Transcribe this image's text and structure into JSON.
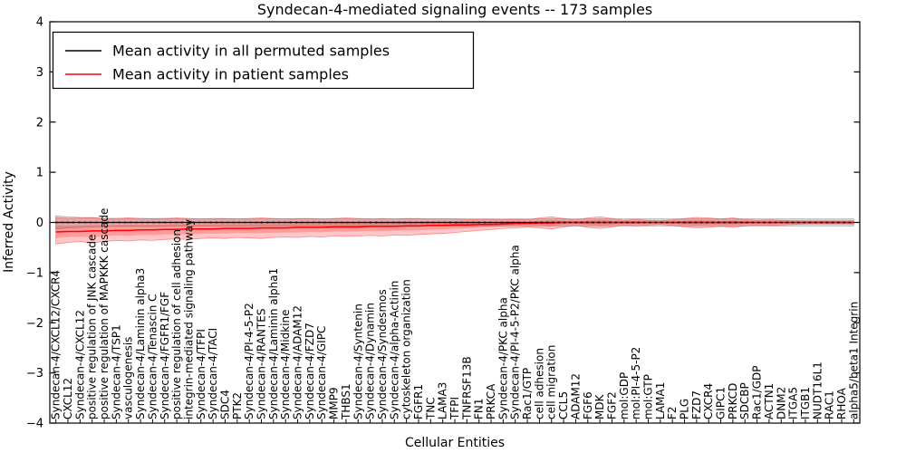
{
  "chart_data": {
    "type": "line",
    "title": "Syndecan-4-mediated signaling events -- 173 samples",
    "xlabel": "Cellular Entities",
    "ylabel": "Inferred Activity",
    "ylim": [
      -4,
      4
    ],
    "yticks": [
      -4,
      -3,
      -2,
      -1,
      0,
      1,
      2,
      3,
      4
    ],
    "grid": false,
    "legend_position": "upper-left",
    "legend": [
      {
        "label": "Mean activity in all permuted samples",
        "color": "#000000"
      },
      {
        "label": "Mean activity in patient samples",
        "color": "#ff0000"
      }
    ],
    "categories": [
      "Syndecan-4/CXCL12/CXCR4",
      "CXCL12",
      "Syndecan-4/CXCL12",
      "positive regulation of JNK cascade",
      "positive regulation of MAPKKK cascade",
      "Syndecan-4/TSP1",
      "vasculogenesis",
      "Syndecan-4/Laminin alpha3",
      "Syndecan-4/Tenascin C",
      "Syndecan-4/FGFR1/FGF",
      "positive regulation of cell adhesion",
      "integrin-mediated signaling pathway",
      "Syndecan-4/TFPI",
      "Syndecan-4/TACI",
      "SDC4",
      "PTK2",
      "Syndecan-4/PI-4-5-P2",
      "Syndecan-4/RANTES",
      "Syndecan-4/Laminin alpha1",
      "Syndecan-4/Midkine",
      "Syndecan-4/ADAM12",
      "Syndecan-4/FZD7",
      "Syndecan-4/GIPC",
      "MMP9",
      "THBS1",
      "Syndecan-4/Syntenin",
      "Syndecan-4/Dynamin",
      "Syndecan-4/Syndesmos",
      "Syndecan-4/alpha-Actinin",
      "cytoskeleton organization",
      "FGFR1",
      "TNC",
      "LAMA3",
      "TFPI",
      "TNFRSF13B",
      "FN1",
      "PRKCA",
      "Syndecan-4/PKC alpha",
      "Syndecan-4/PI-4-5-P2/PKC alpha",
      "Rac1/GTP",
      "cell adhesion",
      "cell migration",
      "CCL5",
      "ADAM12",
      "FGF6",
      "MDK",
      "FGF2",
      "mol:GDP",
      "mol:PI-4-5-P2",
      "mol:GTP",
      "LAMA1",
      "F2",
      "PLG",
      "FZD7",
      "CXCR4",
      "GIPC1",
      "PRKCD",
      "SDCBP",
      "Rac1/GDP",
      "ACTN1",
      "DNM2",
      "ITGA5",
      "ITGB1",
      "NUDT16L1",
      "RAC1",
      "RHOA",
      "alpha5/beta1 Integrin"
    ],
    "series": [
      {
        "name": "Mean activity in all permuted samples",
        "color": "#000000",
        "style": "solid-with-dotted-overlay",
        "values": [
          0,
          0,
          0,
          0,
          0,
          0,
          0,
          0,
          0,
          0,
          0,
          0,
          0,
          0,
          0,
          0,
          0,
          0,
          0,
          0,
          0,
          0,
          0,
          0,
          0,
          0,
          0,
          0,
          0,
          0,
          0,
          0,
          0,
          0,
          0,
          0,
          0,
          0,
          0,
          0,
          0,
          0,
          0,
          0,
          0,
          0,
          0,
          0,
          0,
          0,
          0,
          0,
          0,
          0,
          0,
          0,
          0,
          0,
          0,
          0,
          0,
          0,
          0,
          0,
          0,
          0,
          0
        ]
      },
      {
        "name": "Mean activity in patient samples",
        "color": "#ff0000",
        "style": "solid",
        "values": [
          -0.19,
          -0.18,
          -0.18,
          -0.17,
          -0.17,
          -0.16,
          -0.16,
          -0.15,
          -0.15,
          -0.14,
          -0.14,
          -0.13,
          -0.13,
          -0.13,
          -0.12,
          -0.12,
          -0.12,
          -0.11,
          -0.11,
          -0.11,
          -0.1,
          -0.1,
          -0.1,
          -0.09,
          -0.09,
          -0.09,
          -0.08,
          -0.08,
          -0.08,
          -0.07,
          -0.07,
          -0.06,
          -0.06,
          -0.05,
          -0.05,
          -0.04,
          -0.04,
          -0.03,
          -0.02,
          -0.02,
          -0.01,
          -0.01,
          0,
          0,
          0,
          0,
          0,
          0,
          0,
          0,
          0,
          0,
          0,
          0,
          0,
          0,
          0,
          0,
          0,
          0,
          0,
          0,
          0,
          0,
          0,
          0,
          0
        ]
      }
    ],
    "bands": {
      "patient_outer": {
        "color": "rgba(255,0,0,0.22)",
        "edge": "rgba(255,60,60,0.55)",
        "upper": [
          0.1,
          0.08,
          0.09,
          0.1,
          0.08,
          0.08,
          0.09,
          0.08,
          0.07,
          0.08,
          0.09,
          0.08,
          0.07,
          0.08,
          0.08,
          0.07,
          0.08,
          0.09,
          0.08,
          0.07,
          0.08,
          0.08,
          0.07,
          0.08,
          0.09,
          0.08,
          0.07,
          0.08,
          0.07,
          0.08,
          0.08,
          0.07,
          0.07,
          0.07,
          0.06,
          0.06,
          0.06,
          0.05,
          0.06,
          0.05,
          0.09,
          0.11,
          0.08,
          0.05,
          0.09,
          0.11,
          0.08,
          0.04,
          0.06,
          0.04,
          0.03,
          0.05,
          0.08,
          0.1,
          0.09,
          0.07,
          0.09,
          0.06,
          0.04,
          0.05,
          0.04,
          0.03,
          0.03,
          0.03,
          0.03,
          0.03,
          0.03
        ],
        "lower": [
          -0.43,
          -0.4,
          -0.38,
          -0.41,
          -0.38,
          -0.36,
          -0.37,
          -0.35,
          -0.36,
          -0.34,
          -0.33,
          -0.34,
          -0.32,
          -0.31,
          -0.32,
          -0.3,
          -0.31,
          -0.32,
          -0.3,
          -0.29,
          -0.3,
          -0.28,
          -0.29,
          -0.27,
          -0.28,
          -0.27,
          -0.26,
          -0.27,
          -0.25,
          -0.26,
          -0.24,
          -0.23,
          -0.22,
          -0.2,
          -0.18,
          -0.16,
          -0.14,
          -0.12,
          -0.11,
          -0.09,
          -0.11,
          -0.13,
          -0.09,
          -0.06,
          -0.1,
          -0.12,
          -0.09,
          -0.05,
          -0.07,
          -0.05,
          -0.04,
          -0.06,
          -0.09,
          -0.11,
          -0.1,
          -0.08,
          -0.1,
          -0.07,
          -0.05,
          -0.06,
          -0.05,
          -0.04,
          -0.03,
          -0.03,
          -0.03,
          -0.03,
          -0.03
        ]
      },
      "permuted": {
        "color": "rgba(120,120,120,0.28)",
        "edge": "rgba(100,100,100,0.45)",
        "upper": [
          0.13,
          0.11,
          0.1,
          0.09,
          0.08,
          0.08,
          0.08,
          0.08,
          0.08,
          0.08,
          0.07,
          0.07,
          0.07,
          0.07,
          0.07,
          0.07,
          0.07,
          0.07,
          0.07,
          0.07,
          0.07,
          0.07,
          0.07,
          0.07,
          0.07,
          0.07,
          0.07,
          0.07,
          0.07,
          0.07,
          0.07,
          0.07,
          0.07,
          0.07,
          0.07,
          0.07,
          0.07,
          0.07,
          0.07,
          0.07,
          0.07,
          0.07,
          0.07,
          0.07,
          0.07,
          0.07,
          0.07,
          0.07,
          0.07,
          0.07,
          0.07,
          0.07,
          0.07,
          0.07,
          0.07,
          0.07,
          0.07,
          0.07,
          0.07,
          0.07,
          0.07,
          0.07,
          0.07,
          0.07,
          0.07,
          0.07,
          0.07
        ],
        "lower": [
          -0.13,
          -0.11,
          -0.1,
          -0.09,
          -0.08,
          -0.08,
          -0.08,
          -0.08,
          -0.08,
          -0.08,
          -0.07,
          -0.07,
          -0.07,
          -0.07,
          -0.07,
          -0.07,
          -0.07,
          -0.07,
          -0.07,
          -0.07,
          -0.07,
          -0.07,
          -0.07,
          -0.07,
          -0.07,
          -0.07,
          -0.07,
          -0.07,
          -0.07,
          -0.07,
          -0.07,
          -0.07,
          -0.07,
          -0.07,
          -0.07,
          -0.07,
          -0.07,
          -0.07,
          -0.07,
          -0.07,
          -0.07,
          -0.07,
          -0.07,
          -0.07,
          -0.07,
          -0.07,
          -0.07,
          -0.07,
          -0.07,
          -0.07,
          -0.07,
          -0.07,
          -0.07,
          -0.07,
          -0.07,
          -0.07,
          -0.07,
          -0.07,
          -0.07,
          -0.07,
          -0.07,
          -0.07,
          -0.07,
          -0.07,
          -0.07,
          -0.07,
          -0.07
        ]
      }
    }
  }
}
